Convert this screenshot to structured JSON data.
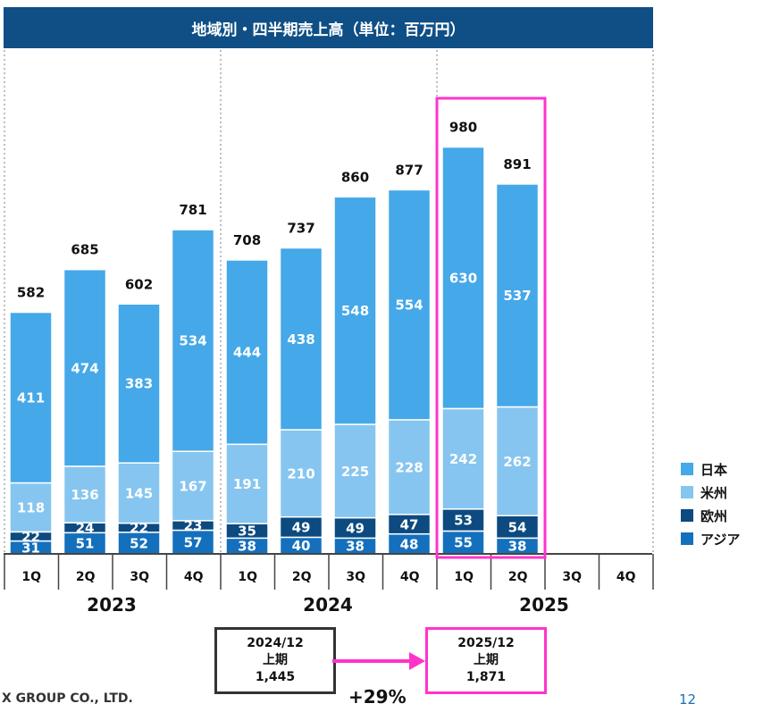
{
  "title": "地域別・四半期売上高（単位：百万円）",
  "chart_data": {
    "type": "bar",
    "stacked": true,
    "years": [
      "2023",
      "2024",
      "2025"
    ],
    "categories": [
      "1Q",
      "2Q",
      "3Q",
      "4Q",
      "1Q",
      "2Q",
      "3Q",
      "4Q",
      "1Q",
      "2Q",
      "3Q",
      "4Q"
    ],
    "category_years": [
      "2023",
      "2023",
      "2023",
      "2023",
      "2024",
      "2024",
      "2024",
      "2024",
      "2025",
      "2025",
      "2025",
      "2025"
    ],
    "series": [
      {
        "name": "アジア",
        "color": "#1470bd",
        "values": [
          31,
          51,
          52,
          57,
          38,
          40,
          38,
          48,
          55,
          38,
          null,
          null
        ]
      },
      {
        "name": "欧州",
        "color": "#0c4a80",
        "values": [
          22,
          24,
          22,
          23,
          35,
          49,
          49,
          47,
          53,
          54,
          null,
          null
        ]
      },
      {
        "name": "米州",
        "color": "#86c5ef",
        "values": [
          118,
          136,
          145,
          167,
          191,
          210,
          225,
          228,
          242,
          262,
          null,
          null
        ]
      },
      {
        "name": "日本",
        "color": "#45a8e8",
        "values": [
          411,
          474,
          383,
          534,
          444,
          438,
          548,
          554,
          630,
          537,
          null,
          null
        ]
      }
    ],
    "totals": [
      582,
      685,
      602,
      781,
      708,
      737,
      860,
      877,
      980,
      891,
      null,
      null
    ],
    "highlight": {
      "categories": [
        8,
        9
      ],
      "color": "#ff33cc"
    }
  },
  "legend": [
    {
      "label": "日本",
      "color": "#45a8e8"
    },
    {
      "label": "米州",
      "color": "#86c5ef"
    },
    {
      "label": "欧州",
      "color": "#0c4a80"
    },
    {
      "label": "アジア",
      "color": "#1470bd"
    }
  ],
  "summary": {
    "prev": {
      "period": "2024/12",
      "label": "上期",
      "value": "1,445"
    },
    "curr": {
      "period": "2025/12",
      "label": "上期",
      "value": "1,871"
    },
    "growth": "+29%",
    "arrow_color": "#ff33cc"
  },
  "footer": {
    "company": "X GROUP CO., LTD.",
    "page": "12"
  }
}
